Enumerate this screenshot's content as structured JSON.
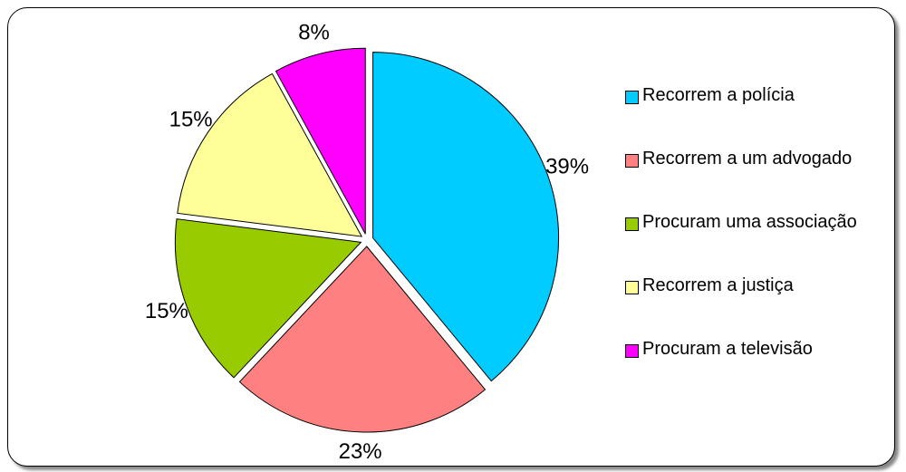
{
  "chart_data": {
    "type": "pie",
    "categories": [
      "Recorrem a polícia",
      "Recorrem a um advogado",
      "Procuram uma associação",
      "Recorrem a justiça",
      "Procuram a televisão"
    ],
    "values": [
      39,
      23,
      15,
      15,
      8
    ],
    "value_labels": [
      "39%",
      "23%",
      "15%",
      "15%",
      "8%"
    ],
    "colors": [
      "#00ccff",
      "#ff8080",
      "#99cc00",
      "#ffff99",
      "#ff00ff"
    ]
  }
}
